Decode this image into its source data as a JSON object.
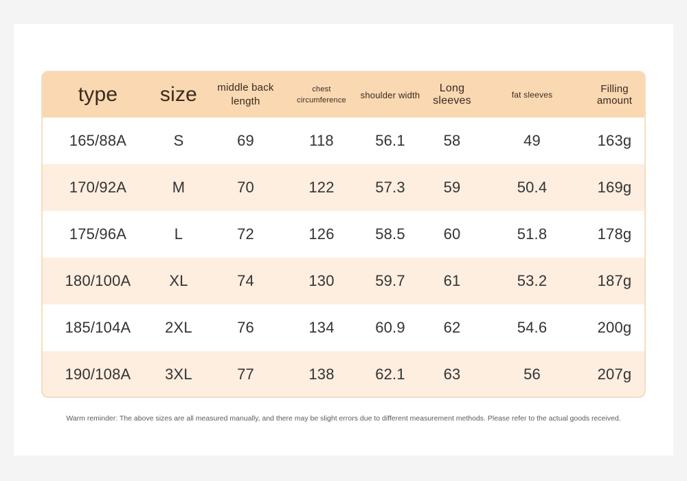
{
  "table": {
    "headers": [
      "type",
      "size",
      "middle back length",
      "chest circumference",
      "shoulder width",
      "Long sleeves",
      "fat sleeves",
      "Filling amount"
    ],
    "rows": [
      [
        "165/88A",
        "S",
        "69",
        "118",
        "56.1",
        "58",
        "49",
        "163g"
      ],
      [
        "170/92A",
        "M",
        "70",
        "122",
        "57.3",
        "59",
        "50.4",
        "169g"
      ],
      [
        "175/96A",
        "L",
        "72",
        "126",
        "58.5",
        "60",
        "51.8",
        "178g"
      ],
      [
        "180/100A",
        "XL",
        "74",
        "130",
        "59.7",
        "61",
        "53.2",
        "187g"
      ],
      [
        "185/104A",
        "2XL",
        "76",
        "134",
        "60.9",
        "62",
        "54.6",
        "200g"
      ],
      [
        "190/108A",
        "3XL",
        "77",
        "138",
        "62.1",
        "63",
        "56",
        "207g"
      ]
    ]
  },
  "colors": {
    "header_bg": "#f9d8b2",
    "band_bg": "#fdeee0",
    "border": "#f7dcc0",
    "text": "#333333"
  },
  "footnote": "Warm reminder: The above sizes are all measured manually, and there may be slight errors due to different measurement methods. Please refer to the actual goods received."
}
